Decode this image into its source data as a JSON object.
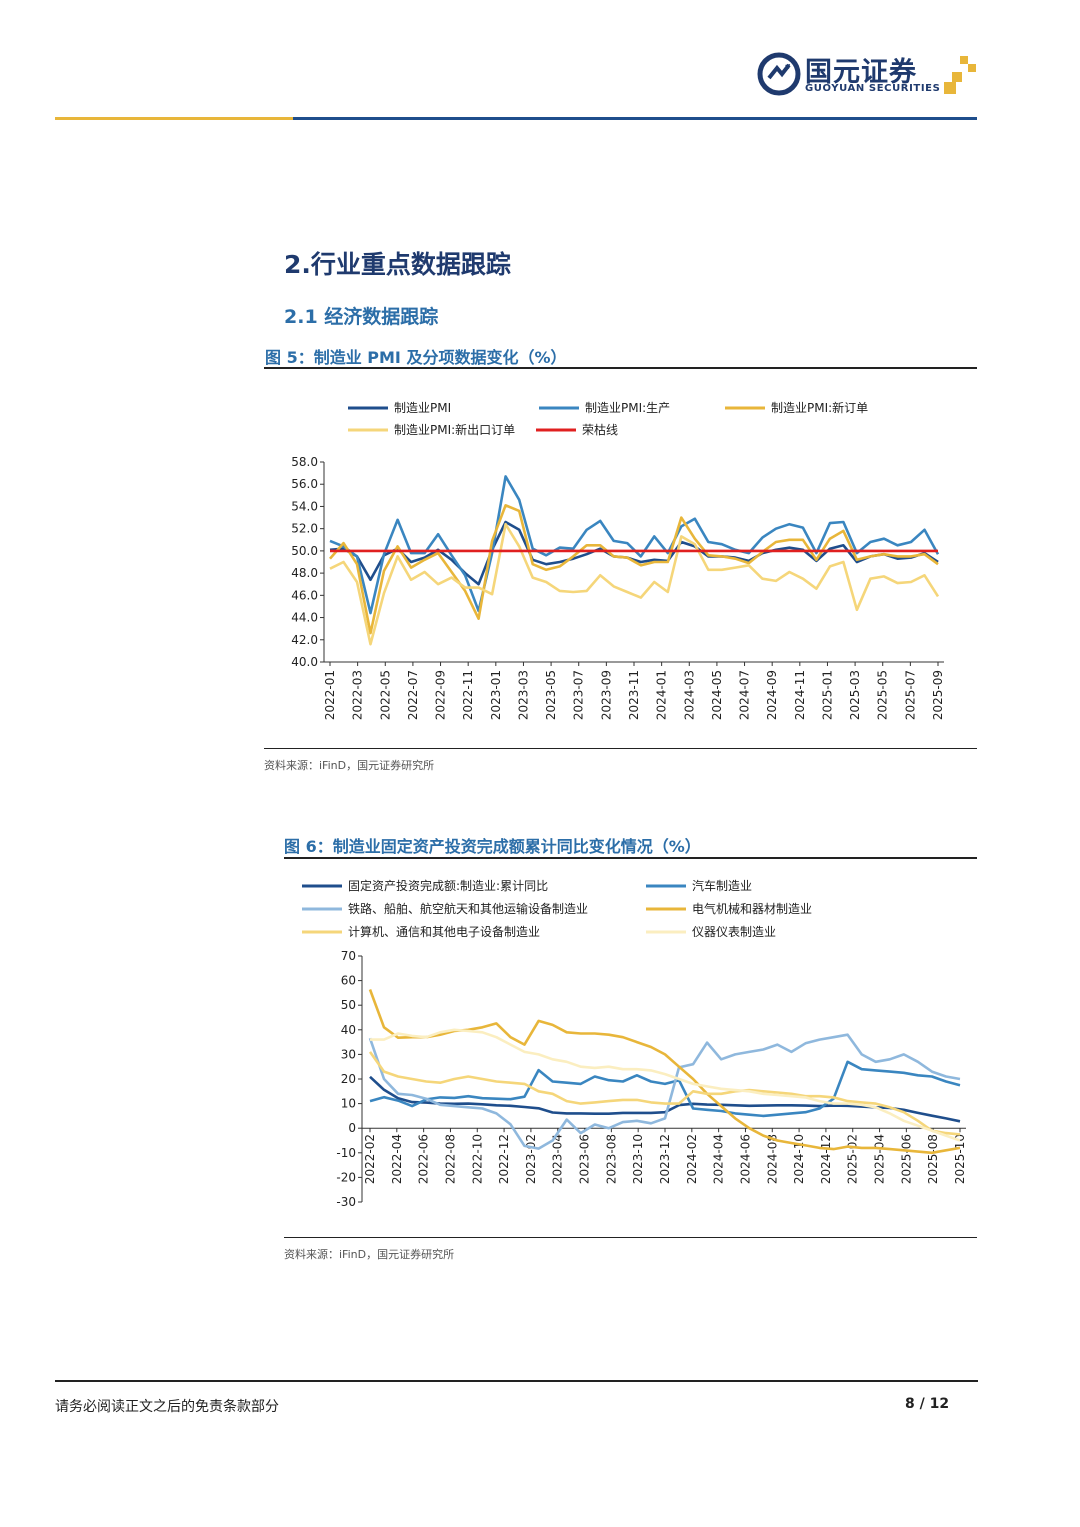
{
  "header": {
    "logo_cn": "国元证券",
    "logo_en": "GUOYUAN SECURITIES",
    "colors": {
      "gold": "#e8b63a",
      "navy": "#1f4e8c"
    }
  },
  "section_title": "2.行业重点数据跟踪",
  "subsection_title": "2.1 经济数据跟踪",
  "figure5": {
    "title": "图 5：制造业 PMI 及分项数据变化（%）",
    "source": "资料来源：iFinD，国元证券研究所"
  },
  "figure6": {
    "title": "图 6：制造业固定资产投资完成额累计同比变化情况（%）",
    "source": "资料来源：iFinD，国元证券研究所"
  },
  "footer": {
    "disclaimer": "请务必阅读正文之后的免责条款部分",
    "page": "8 / 12"
  },
  "chart_data": [
    {
      "type": "line",
      "title": "",
      "x_tick_labels": [
        "2022-01",
        "2022-03",
        "2022-05",
        "2022-07",
        "2022-09",
        "2022-11",
        "2023-01",
        "2023-03",
        "2023-05",
        "2023-07",
        "2023-09",
        "2023-11",
        "2024-01",
        "2024-03",
        "2024-05",
        "2024-07",
        "2024-09",
        "2024-11",
        "2025-01",
        "2025-03",
        "2025-05",
        "2025-07",
        "2025-09"
      ],
      "y_ticks": [
        "58.0",
        "56.0",
        "54.0",
        "52.0",
        "50.0",
        "48.0",
        "46.0",
        "44.0",
        "42.0",
        "40.0"
      ],
      "ylim": [
        40,
        58
      ],
      "legend_position": "top",
      "grid": false,
      "series": [
        {
          "name": "制造业PMI",
          "color": "#1f4e8c",
          "values": [
            50.1,
            50.2,
            49.5,
            47.4,
            49.6,
            50.2,
            49.0,
            49.4,
            50.1,
            49.2,
            48.0,
            47.0,
            50.1,
            52.6,
            51.9,
            49.2,
            48.8,
            49.0,
            49.3,
            49.7,
            50.2,
            49.5,
            49.4,
            49.0,
            49.2,
            49.1,
            50.8,
            50.4,
            49.5,
            49.5,
            49.4,
            49.1,
            49.8,
            50.1,
            50.3,
            50.1,
            49.1,
            50.2,
            50.5,
            49.0,
            49.5,
            49.7,
            49.3,
            49.4,
            49.8,
            49.0
          ]
        },
        {
          "name": "制造业PMI:生产",
          "color": "#3a86c0",
          "values": [
            50.9,
            50.4,
            49.5,
            44.4,
            49.7,
            52.8,
            49.8,
            49.8,
            51.5,
            49.6,
            47.8,
            44.6,
            49.8,
            56.7,
            54.6,
            50.2,
            49.6,
            50.3,
            50.2,
            51.9,
            52.7,
            50.9,
            50.7,
            49.5,
            51.3,
            49.8,
            52.2,
            52.9,
            50.8,
            50.6,
            50.1,
            49.8,
            51.2,
            52.0,
            52.4,
            52.1,
            49.8,
            52.5,
            52.6,
            49.8,
            50.8,
            51.1,
            50.5,
            50.8,
            51.9,
            49.7
          ]
        },
        {
          "name": "制造业PMI:新订单",
          "color": "#e8b63a",
          "values": [
            49.3,
            50.7,
            48.8,
            42.6,
            48.2,
            50.4,
            48.5,
            49.2,
            49.8,
            48.1,
            46.4,
            43.9,
            50.9,
            54.1,
            53.6,
            48.8,
            48.3,
            48.6,
            49.5,
            50.5,
            50.5,
            49.5,
            49.4,
            48.7,
            49.0,
            49.0,
            53.0,
            51.1,
            49.6,
            49.5,
            49.3,
            48.9,
            49.9,
            50.8,
            51.0,
            51.0,
            49.2,
            51.1,
            51.8,
            49.2,
            49.5,
            49.7,
            49.5,
            49.5,
            49.7,
            48.8
          ]
        },
        {
          "name": "制造业PMI:新出口订单",
          "color": "#f5d67a",
          "values": [
            48.4,
            49.0,
            47.2,
            41.6,
            46.2,
            49.5,
            47.4,
            48.1,
            47.0,
            47.6,
            46.7,
            46.7,
            46.1,
            52.4,
            50.4,
            47.6,
            47.2,
            46.4,
            46.3,
            46.4,
            47.8,
            46.8,
            46.3,
            45.8,
            47.2,
            46.3,
            51.3,
            50.6,
            48.3,
            48.3,
            48.5,
            48.7,
            47.5,
            47.3,
            48.1,
            47.5,
            46.6,
            48.6,
            49.0,
            44.7,
            47.5,
            47.7,
            47.1,
            47.2,
            47.8,
            45.9
          ]
        },
        {
          "name": "荣枯线",
          "color": "#e02020",
          "values": [
            50,
            50,
            50,
            50,
            50,
            50,
            50,
            50,
            50,
            50,
            50,
            50,
            50,
            50,
            50,
            50,
            50,
            50,
            50,
            50,
            50,
            50,
            50,
            50,
            50,
            50,
            50,
            50,
            50,
            50,
            50,
            50,
            50,
            50,
            50,
            50,
            50,
            50,
            50,
            50,
            50,
            50,
            50,
            50,
            50,
            50
          ]
        }
      ]
    },
    {
      "type": "line",
      "title": "",
      "x_tick_labels": [
        "2022-02",
        "2022-04",
        "2022-06",
        "2022-08",
        "2022-10",
        "2022-12",
        "2023-02",
        "2023-04",
        "2023-06",
        "2023-08",
        "2023-10",
        "2023-12",
        "2024-02",
        "2024-04",
        "2024-06",
        "2024-08",
        "2024-10",
        "2024-12",
        "2025-02",
        "2025-04",
        "2025-06",
        "2025-08",
        "2025-10"
      ],
      "y_ticks": [
        "70",
        "60",
        "50",
        "40",
        "30",
        "20",
        "10",
        "0",
        "-10",
        "-20",
        "-30"
      ],
      "ylim": [
        -30,
        70
      ],
      "legend_position": "top",
      "grid": false,
      "series": [
        {
          "name": "固定资产投资完成额:制造业:累计同比",
          "color": "#1f4e8c",
          "values": [
            20.9,
            15.6,
            12.2,
            10.6,
            10.4,
            10.0,
            9.9,
            10.0,
            9.7,
            9.3,
            9.1,
            8.6,
            8.1,
            6.4,
            6.0,
            6.0,
            5.9,
            5.9,
            6.2,
            6.2,
            6.2,
            6.5,
            9.4,
            9.9,
            9.6,
            9.5,
            9.3,
            9.1,
            9.2,
            9.3,
            9.3,
            9.2,
            9.0,
            9.2,
            9.1,
            8.8,
            8.5,
            8.2,
            7.5,
            6.2,
            5.1,
            4.0,
            2.8
          ]
        },
        {
          "name": "汽车制造业",
          "color": "#3a86c0",
          "values": [
            11.0,
            12.6,
            11.2,
            9.0,
            11.7,
            12.5,
            12.3,
            13.0,
            12.2,
            12.0,
            11.8,
            12.8,
            23.6,
            19.0,
            18.5,
            18.0,
            21.0,
            19.5,
            19.0,
            21.5,
            19.0,
            18.0,
            19.5,
            8.0,
            7.5,
            7.0,
            6.0,
            5.5,
            5.0,
            5.5,
            6.0,
            6.5,
            8.0,
            12.0,
            27.0,
            24.0,
            23.5,
            23.0,
            22.5,
            21.5,
            21.0,
            19.0,
            17.5
          ]
        },
        {
          "name": "铁路、船舶、航空航天和其他运输设备制造业",
          "color": "#8fb8dd",
          "values": [
            36.6,
            20.0,
            14.0,
            13.5,
            12.0,
            9.5,
            9.0,
            8.5,
            8.0,
            6.0,
            1.6,
            -7.2,
            -8.3,
            -5.0,
            3.5,
            -2.0,
            1.5,
            0,
            2.5,
            3.0,
            2.0,
            4.0,
            24.7,
            26.0,
            34.8,
            28.0,
            30.0,
            31.0,
            32.0,
            34.0,
            31.0,
            34.5,
            36.0,
            37.0,
            38.0,
            30.0,
            27.0,
            28.0,
            30.0,
            27.0,
            23.0,
            21.0,
            20.0
          ]
        },
        {
          "name": "电气机械和器材制造业",
          "color": "#e8b63a",
          "values": [
            56.4,
            41.0,
            36.8,
            37.0,
            37.0,
            38.0,
            39.5,
            40.0,
            41.0,
            42.6,
            37.0,
            34.0,
            43.6,
            42.0,
            39.0,
            38.5,
            38.5,
            38.0,
            37.0,
            35.0,
            33.0,
            30.0,
            25.0,
            20.0,
            14.0,
            9.0,
            4.0,
            0,
            -3.0,
            -5.0,
            -6.0,
            -7.0,
            -8.0,
            -8.5,
            -7.5,
            -8.0,
            -8.0,
            -8.5,
            -9.0,
            -9.5,
            -10.0,
            -9.0,
            -8.0
          ]
        },
        {
          "name": "计算机、通信和其他电子设备制造业",
          "color": "#f5d67a",
          "values": [
            31.0,
            23.0,
            21.0,
            20.0,
            19.0,
            18.5,
            20.0,
            21.0,
            20.0,
            19.0,
            18.5,
            18.0,
            15.0,
            14.0,
            11.0,
            10.0,
            10.5,
            11.0,
            11.5,
            11.5,
            10.5,
            10.0,
            10.0,
            15.0,
            14.0,
            14.0,
            15.0,
            15.5,
            15.0,
            14.5,
            14.0,
            13.0,
            13.0,
            12.5,
            11.0,
            10.5,
            10.0,
            8.5,
            6.5,
            3.0,
            -1.0,
            -2.0,
            -2.5
          ]
        },
        {
          "name": "仪器仪表制造业",
          "color": "#fbeec0",
          "values": [
            36.0,
            36.0,
            38.5,
            37.5,
            37.0,
            39.0,
            40.0,
            39.5,
            39.0,
            37.0,
            34.0,
            31.0,
            30.0,
            28.0,
            27.0,
            25.0,
            24.5,
            25.0,
            24.0,
            24.0,
            23.5,
            22.0,
            20.0,
            18.0,
            17.0,
            16.0,
            15.5,
            15.0,
            14.0,
            13.5,
            13.0,
            12.5,
            11.0,
            10.0,
            10.0,
            9.5,
            8.5,
            6.0,
            3.0,
            1.0,
            -1.0,
            -3.0,
            -5.0
          ]
        }
      ]
    }
  ]
}
